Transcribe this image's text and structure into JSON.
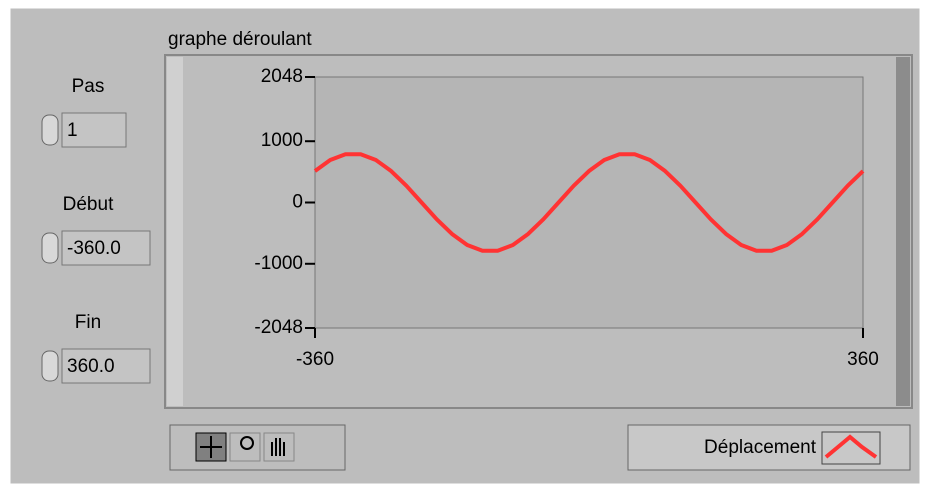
{
  "controls": [
    {
      "label": "Pas",
      "value": "1"
    },
    {
      "label": "Début",
      "value": "-360.0"
    },
    {
      "label": "Fin",
      "value": "360.0"
    }
  ],
  "chart_data": {
    "type": "line",
    "title": "graphe déroulant",
    "x": [
      -360,
      -340,
      -320,
      -300,
      -280,
      -260,
      -240,
      -220,
      -200,
      -180,
      -160,
      -140,
      -120,
      -100,
      -80,
      -60,
      -40,
      -20,
      0,
      20,
      40,
      60,
      80,
      100,
      120,
      140,
      160,
      180,
      200,
      220,
      240,
      260,
      280,
      300,
      320,
      340,
      360
    ],
    "series": [
      {
        "name": "Déplacement",
        "color": "#ff3333",
        "values": [
          514,
          693,
          788,
          788,
          693,
          514,
          274,
          0,
          -274,
          -514,
          -693,
          -788,
          -788,
          -693,
          -514,
          -274,
          0,
          274,
          514,
          693,
          788,
          788,
          693,
          514,
          274,
          0,
          -274,
          -514,
          -693,
          -788,
          -788,
          -693,
          -514,
          -274,
          0,
          274,
          514
        ]
      }
    ],
    "xlim": [
      -360,
      360
    ],
    "xticks": [
      -360,
      360
    ],
    "ylim": [
      -2048,
      2048
    ],
    "yticks": [
      -2048,
      -1000,
      0,
      1000,
      2048
    ],
    "grid": false
  }
}
